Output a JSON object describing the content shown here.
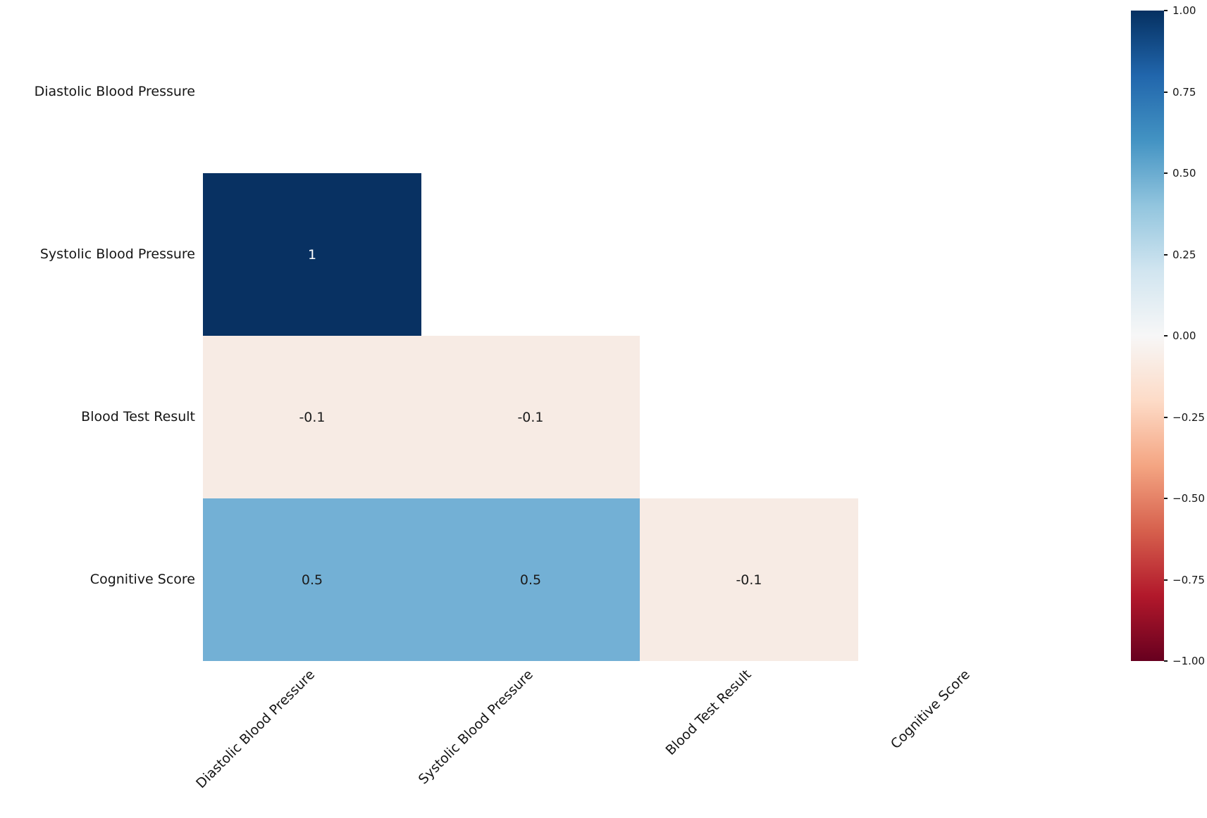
{
  "chart_data": {
    "type": "heatmap",
    "subtype": "correlation-matrix-lower-triangle",
    "title": "",
    "variables": [
      "Diastolic Blood Pressure",
      "Systolic Blood Pressure",
      "Blood Test Result",
      "Cognitive Score"
    ],
    "y_tick_labels": [
      "Diastolic Blood Pressure",
      "Systolic Blood Pressure",
      "Blood Test Result",
      "Cognitive Score"
    ],
    "x_tick_labels": [
      "Diastolic Blood Pressure",
      "Systolic Blood Pressure",
      "Blood Test Result",
      "Cognitive Score"
    ],
    "matrix_rows_by_cols": [
      [
        null,
        null,
        null,
        null
      ],
      [
        1,
        null,
        null,
        null
      ],
      [
        -0.1,
        -0.1,
        null,
        null
      ],
      [
        0.5,
        0.5,
        -0.1,
        null
      ]
    ],
    "cells": [
      {
        "row": "Systolic Blood Pressure",
        "col": "Diastolic Blood Pressure",
        "value": 1,
        "label": "1",
        "bg": "#083162",
        "fg": "#ffffff"
      },
      {
        "row": "Blood Test Result",
        "col": "Diastolic Blood Pressure",
        "value": -0.1,
        "label": "-0.1",
        "bg": "#f7ebe4",
        "fg": "#1c1c1c"
      },
      {
        "row": "Blood Test Result",
        "col": "Systolic Blood Pressure",
        "value": -0.1,
        "label": "-0.1",
        "bg": "#f7ebe4",
        "fg": "#1c1c1c"
      },
      {
        "row": "Cognitive Score",
        "col": "Diastolic Blood Pressure",
        "value": 0.5,
        "label": "0.5",
        "bg": "#73b0d5",
        "fg": "#1c1c1c"
      },
      {
        "row": "Cognitive Score",
        "col": "Systolic Blood Pressure",
        "value": 0.5,
        "label": "0.5",
        "bg": "#73b0d5",
        "fg": "#1c1c1c"
      },
      {
        "row": "Cognitive Score",
        "col": "Blood Test Result",
        "value": -0.1,
        "label": "-0.1",
        "bg": "#f7ebe4",
        "fg": "#1c1c1c"
      }
    ],
    "colorbar": {
      "colormap": "RdBu",
      "vmin": -1,
      "vmax": 1,
      "tick_labels": [
        "1.00",
        "0.75",
        "0.50",
        "0.25",
        "0.00",
        "−0.25",
        "−0.50",
        "−0.75",
        "−1.00"
      ],
      "gradient_top_to_bottom": [
        "#053061",
        "#2166ac",
        "#4393c3",
        "#92c5de",
        "#d1e5f0",
        "#f7f7f7",
        "#fddbc7",
        "#f4a582",
        "#d6604d",
        "#b2182b",
        "#67001f"
      ]
    },
    "layout": {
      "grid_on": false,
      "legend_position": "colorbar-right",
      "xlabel": "",
      "ylabel": ""
    },
    "colors": {
      "background": "#ffffff",
      "text": "#151515"
    }
  }
}
